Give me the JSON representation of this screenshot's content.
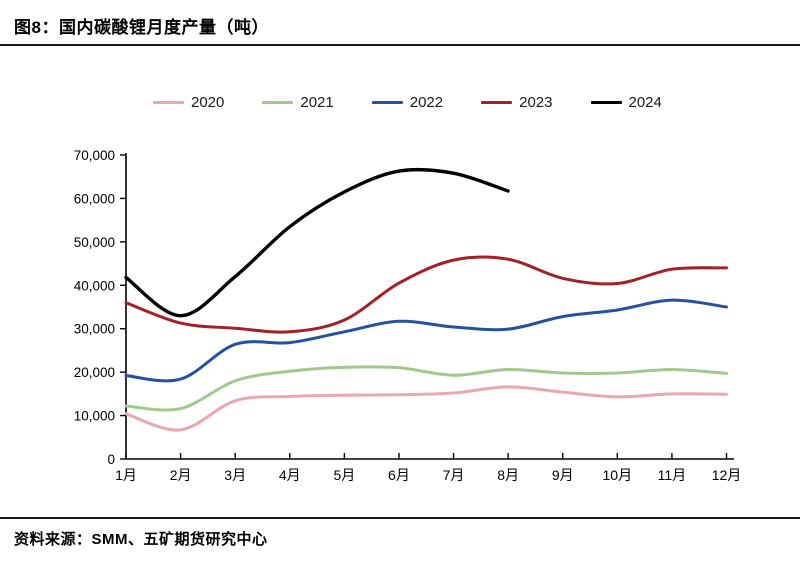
{
  "header": {
    "title": "图8：国内碳酸锂月度产量（吨）"
  },
  "footer": {
    "source": "资料来源：SMM、五矿期货研究中心"
  },
  "chart_data": {
    "type": "line",
    "title": "国内碳酸锂月度产量（吨）",
    "unit": "吨",
    "grid": false,
    "legend_position": "top",
    "categories": [
      "1月",
      "2月",
      "3月",
      "4月",
      "5月",
      "6月",
      "7月",
      "8月",
      "9月",
      "10月",
      "11月",
      "12月"
    ],
    "ylim": [
      0,
      70000
    ],
    "y_ticks": [
      0,
      10000,
      20000,
      30000,
      40000,
      50000,
      60000,
      70000
    ],
    "y_tick_labels": [
      "0",
      "10,000",
      "20,000",
      "30,000",
      "40,000",
      "50,000",
      "60,000",
      "70,000"
    ],
    "axis_color": "#000000",
    "series": [
      {
        "name": "2020",
        "color": "#e9a8b0",
        "values": [
          10400,
          6700,
          13400,
          14400,
          14700,
          14800,
          15200,
          16600,
          15400,
          14300,
          15000,
          14900
        ]
      },
      {
        "name": "2021",
        "color": "#a0ca8d",
        "values": [
          12200,
          11600,
          18000,
          20200,
          21100,
          21000,
          19300,
          20600,
          19800,
          19800,
          20600,
          19700
        ]
      },
      {
        "name": "2022",
        "color": "#2551a0",
        "values": [
          19200,
          18400,
          26400,
          26800,
          29300,
          31700,
          30400,
          29900,
          32800,
          34300,
          36600,
          35000
        ]
      },
      {
        "name": "2023",
        "color": "#a32026",
        "values": [
          36000,
          31300,
          30100,
          29300,
          32000,
          40500,
          45800,
          46000,
          41600,
          40400,
          43700,
          44000
        ]
      },
      {
        "name": "2024",
        "color": "#000000",
        "values": [
          41800,
          33000,
          42000,
          53500,
          61500,
          66300,
          65800,
          61700
        ]
      }
    ]
  }
}
